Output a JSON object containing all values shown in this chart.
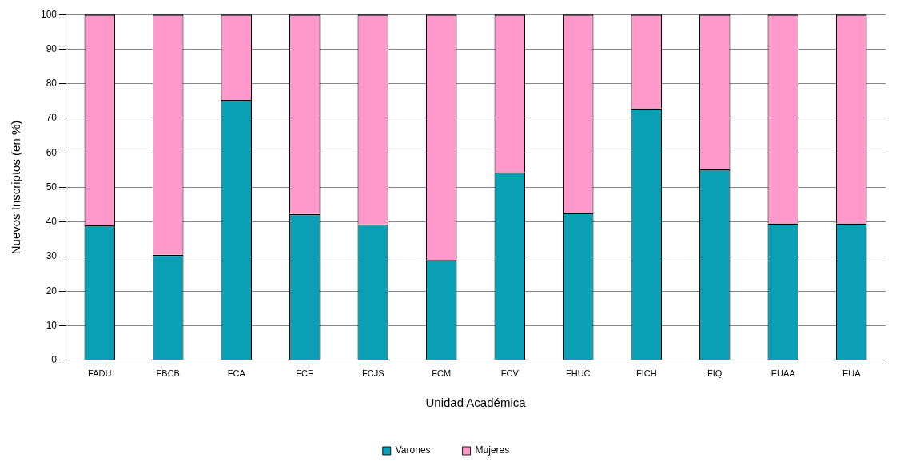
{
  "chart_data": {
    "type": "bar",
    "stacked": true,
    "xlabel": "Unidad Académica",
    "ylabel": "Nuevos Inscriptos (en %)",
    "categories": [
      "FADU",
      "FBCB",
      "FCA",
      "FCE",
      "FCJS",
      "FCM",
      "FCV",
      "FHUC",
      "FICH",
      "FIQ",
      "EUAA",
      "EUA"
    ],
    "series": [
      {
        "name": "Varones",
        "color": "#0a9fb4",
        "values": [
          39,
          30.5,
          75.3,
          42.3,
          39.3,
          29,
          54.4,
          42.6,
          72.9,
          55.2,
          39.6,
          39.6
        ]
      },
      {
        "name": "Mujeres",
        "color": "#ff99cc",
        "values": [
          61,
          69.5,
          24.7,
          57.7,
          60.7,
          71,
          45.6,
          57.4,
          27.1,
          44.8,
          60.4,
          60.4
        ]
      }
    ],
    "ylim": [
      0,
      100
    ],
    "yticks": [
      0,
      10,
      20,
      30,
      40,
      50,
      60,
      70,
      80,
      90,
      100
    ],
    "grid": "y",
    "legend": "bottom"
  }
}
